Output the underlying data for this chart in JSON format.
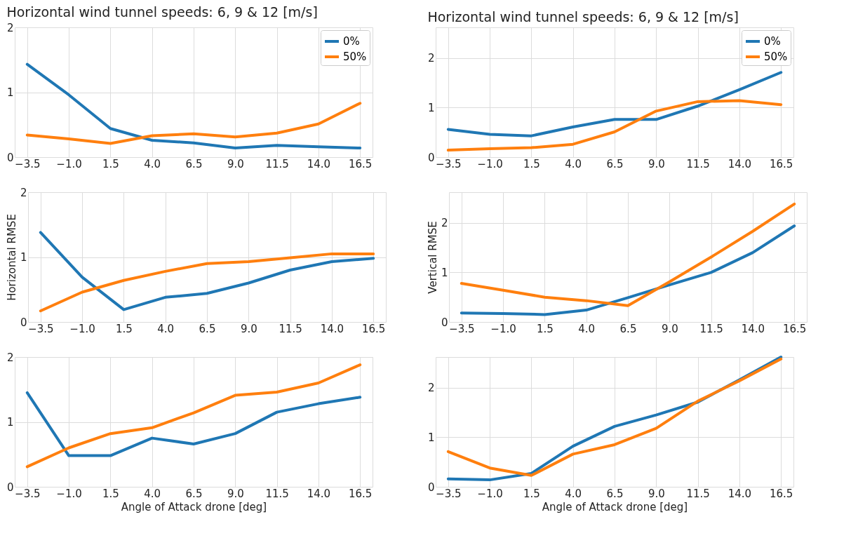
{
  "chart_data": [
    {
      "type": "line",
      "title": "Horizontal wind tunnel speeds: 6, 9 & 12 [m/s]",
      "categories": [
        "−3.5",
        "−1.0",
        "1.5",
        "4.0",
        "6.5",
        "9.0",
        "11.5",
        "14.0",
        "16.5"
      ],
      "ylim": [
        0,
        2
      ],
      "yticks": [
        0,
        1,
        2
      ],
      "grid": true,
      "legend": "top right",
      "series": [
        {
          "name": "0%",
          "color": "#1f77b4",
          "values": [
            1.43,
            0.96,
            0.44,
            0.26,
            0.22,
            0.14,
            0.18,
            0.16,
            0.14
          ]
        },
        {
          "name": "50%",
          "color": "#ff7f0e",
          "values": [
            0.34,
            0.28,
            0.21,
            0.33,
            0.36,
            0.31,
            0.37,
            0.51,
            0.83
          ]
        }
      ]
    },
    {
      "type": "line",
      "title": "Horizontal wind tunnel speeds: 6, 9 & 12 [m/s]",
      "categories": [
        "−3.5",
        "−1.0",
        "1.5",
        "4.0",
        "6.5",
        "9.0",
        "11.5",
        "14.0",
        "16.5"
      ],
      "ylim": [
        0,
        2.62
      ],
      "yticks": [
        0,
        1,
        2
      ],
      "grid": true,
      "legend": "top right",
      "series": [
        {
          "name": "0%",
          "color": "#1f77b4",
          "values": [
            0.56,
            0.46,
            0.43,
            0.61,
            0.76,
            0.76,
            1.03,
            1.36,
            1.71
          ]
        },
        {
          "name": "50%",
          "color": "#ff7f0e",
          "values": [
            0.14,
            0.17,
            0.19,
            0.26,
            0.51,
            0.93,
            1.12,
            1.14,
            1.06
          ]
        }
      ]
    },
    {
      "type": "line",
      "ylabel": "Horizontal RMSE",
      "categories": [
        "−3.5",
        "−1.0",
        "1.5",
        "4.0",
        "6.5",
        "9.0",
        "11.5",
        "14.0",
        "16.5"
      ],
      "ylim": [
        0,
        2
      ],
      "yticks": [
        0,
        1,
        2
      ],
      "grid": true,
      "series": [
        {
          "color": "#1f77b4",
          "values": [
            1.38,
            0.69,
            0.19,
            0.38,
            0.44,
            0.6,
            0.8,
            0.93,
            0.98
          ]
        },
        {
          "color": "#ff7f0e",
          "values": [
            0.17,
            0.46,
            0.64,
            0.78,
            0.9,
            0.93,
            0.99,
            1.05,
            1.05
          ]
        }
      ]
    },
    {
      "type": "line",
      "ylabel": "Vertical RMSE",
      "categories": [
        "−3.5",
        "−1.0",
        "1.5",
        "4.0",
        "6.5",
        "9.0",
        "11.5",
        "14.0",
        "16.5"
      ],
      "ylim": [
        0,
        2.62
      ],
      "yticks": [
        0,
        1,
        2
      ],
      "grid": true,
      "series": [
        {
          "color": "#1f77b4",
          "values": [
            0.18,
            0.17,
            0.15,
            0.24,
            0.49,
            0.75,
            1.0,
            1.4,
            1.94
          ]
        },
        {
          "color": "#ff7f0e",
          "values": [
            0.78,
            0.64,
            0.5,
            0.43,
            0.33,
            0.81,
            1.31,
            1.83,
            2.38
          ]
        }
      ]
    },
    {
      "type": "line",
      "xlabel": "Angle of Attack drone [deg]",
      "categories": [
        "−3.5",
        "−1.0",
        "1.5",
        "4.0",
        "6.5",
        "9.0",
        "11.5",
        "14.0",
        "16.5"
      ],
      "ylim": [
        0,
        2
      ],
      "yticks": [
        0,
        1,
        2
      ],
      "grid": true,
      "series": [
        {
          "color": "#1f77b4",
          "values": [
            1.45,
            0.48,
            0.48,
            0.75,
            0.66,
            0.82,
            1.15,
            1.28,
            1.38
          ]
        },
        {
          "color": "#ff7f0e",
          "values": [
            0.31,
            0.6,
            0.82,
            0.91,
            1.14,
            1.41,
            1.46,
            1.6,
            1.88
          ]
        }
      ]
    },
    {
      "type": "line",
      "xlabel": "Angle of Attack drone [deg]",
      "categories": [
        "−3.5",
        "−1.0",
        "1.5",
        "4.0",
        "6.5",
        "9.0",
        "11.5",
        "14.0",
        "16.5"
      ],
      "ylim": [
        0,
        2.62
      ],
      "yticks": [
        0,
        1,
        2
      ],
      "grid": true,
      "series": [
        {
          "color": "#1f77b4",
          "values": [
            0.16,
            0.14,
            0.27,
            0.82,
            1.22,
            1.45,
            1.71,
            2.16,
            2.62
          ]
        },
        {
          "color": "#ff7f0e",
          "values": [
            0.71,
            0.38,
            0.23,
            0.66,
            0.85,
            1.18,
            1.73,
            2.14,
            2.58
          ]
        }
      ]
    }
  ]
}
